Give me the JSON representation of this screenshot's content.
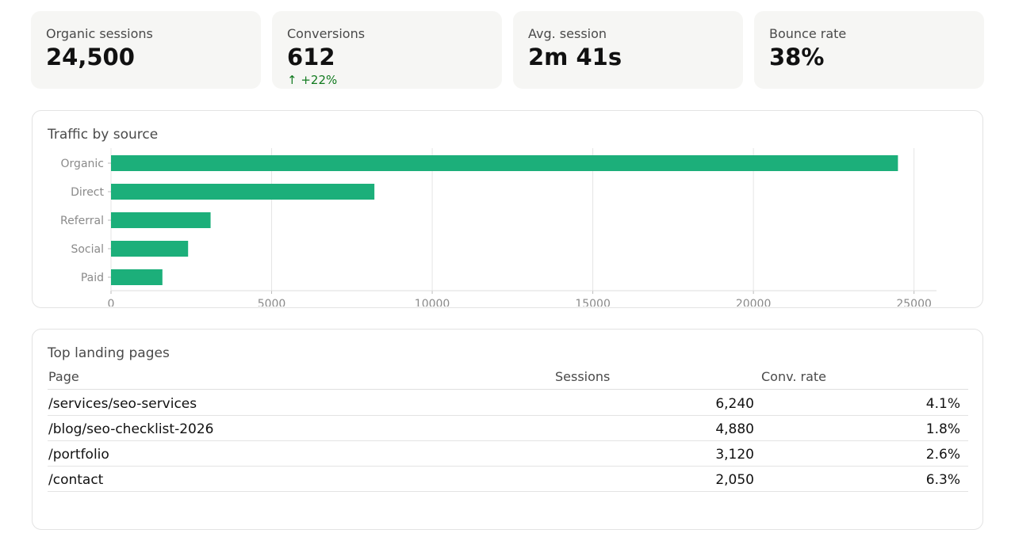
{
  "kpis": [
    {
      "label": "Organic sessions",
      "value": "24,500",
      "delta": ""
    },
    {
      "label": "Conversions",
      "value": "612",
      "delta": "↑ +22%"
    },
    {
      "label": "Avg. session",
      "value": "2m 41s",
      "delta": ""
    },
    {
      "label": "Bounce rate",
      "value": "38%",
      "delta": ""
    }
  ],
  "colors": {
    "accent": "#1caf7a",
    "positive": "#117a1f"
  },
  "traffic_panel": {
    "title": "Traffic by source"
  },
  "chart_data": {
    "type": "bar",
    "orientation": "horizontal",
    "categories": [
      "Organic",
      "Direct",
      "Referral",
      "Social",
      "Paid"
    ],
    "values": [
      24500,
      8200,
      3100,
      2400,
      1600
    ],
    "xticks": [
      "0",
      "5000",
      "10000",
      "15000",
      "20000",
      "25000"
    ],
    "xlim": [
      0,
      25700
    ],
    "grid": true,
    "color": "#1caf7a"
  },
  "landing_panel": {
    "title": "Top landing pages",
    "columns": [
      "Page",
      "Sessions",
      "Conv. rate"
    ],
    "rows": [
      {
        "page": "/services/seo-services",
        "sessions": "6,240",
        "conv": "4.1%"
      },
      {
        "page": "/blog/seo-checklist-2026",
        "sessions": "4,880",
        "conv": "1.8%"
      },
      {
        "page": "/portfolio",
        "sessions": "3,120",
        "conv": "2.6%"
      },
      {
        "page": "/contact",
        "sessions": "2,050",
        "conv": "6.3%"
      }
    ]
  }
}
